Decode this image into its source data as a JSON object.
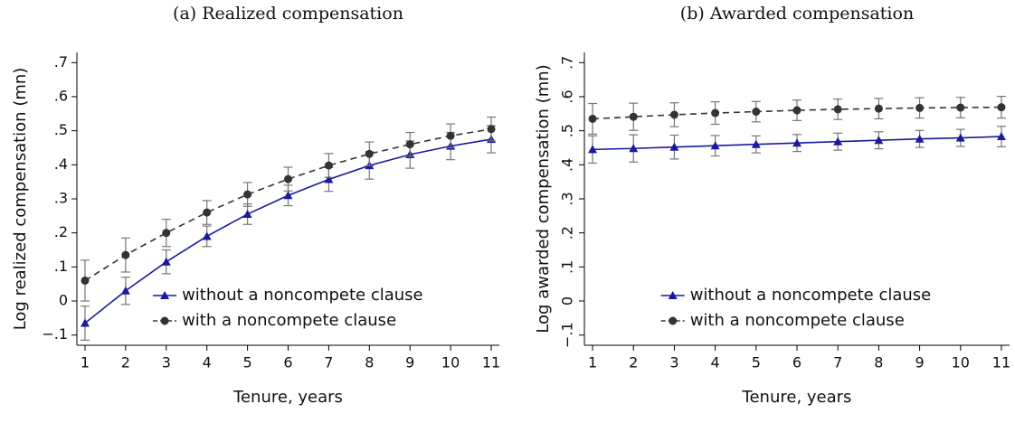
{
  "chart_data": [
    {
      "type": "line",
      "title": "(a) Realized compensation",
      "xlabel": "Tenure, years",
      "ylabel": "Log realized compensation (mn)",
      "x": [
        1,
        2,
        3,
        4,
        5,
        6,
        7,
        8,
        9,
        10,
        11
      ],
      "xlim": [
        0.8,
        11.2
      ],
      "xticks": [
        1,
        2,
        3,
        4,
        5,
        6,
        7,
        8,
        9,
        10,
        11
      ],
      "ylim": [
        -0.13,
        0.73
      ],
      "yticks": [
        {
          "value": -0.1,
          "label": "−.1"
        },
        0,
        {
          "value": 0.1,
          "label": ".1"
        },
        {
          "value": 0.2,
          "label": ".2"
        },
        {
          "value": 0.3,
          "label": ".3"
        },
        {
          "value": 0.4,
          "label": ".4"
        },
        {
          "value": 0.5,
          "label": ".5"
        },
        {
          "value": 0.6,
          "label": ".6"
        },
        {
          "value": 0.7,
          "label": ".7"
        }
      ],
      "legend": "lower right",
      "series": [
        {
          "name": "without a noncompete clause",
          "color": "#1a1a9c",
          "marker": "triangle",
          "linestyle": "solid",
          "values": [
            -0.065,
            0.03,
            0.115,
            0.19,
            0.255,
            0.31,
            0.357,
            0.398,
            0.43,
            0.455,
            0.475
          ],
          "errors": [
            0.05,
            0.04,
            0.035,
            0.03,
            0.03,
            0.03,
            0.035,
            0.04,
            0.04,
            0.04,
            0.04
          ]
        },
        {
          "name": "with a noncompete clause",
          "color": "#333333",
          "marker": "circle",
          "linestyle": "dashed",
          "values": [
            0.06,
            0.135,
            0.2,
            0.26,
            0.313,
            0.358,
            0.398,
            0.432,
            0.46,
            0.485,
            0.505
          ],
          "errors": [
            0.06,
            0.05,
            0.04,
            0.035,
            0.035,
            0.035,
            0.035,
            0.035,
            0.035,
            0.035,
            0.035
          ]
        }
      ]
    },
    {
      "type": "line",
      "title": "(b) Awarded compensation",
      "xlabel": "Tenure, years",
      "ylabel": "Log awarded compensation (mn)",
      "x": [
        1,
        2,
        3,
        4,
        5,
        6,
        7,
        8,
        9,
        10,
        11
      ],
      "xlim": [
        0.8,
        11.2
      ],
      "xticks": [
        1,
        2,
        3,
        4,
        5,
        6,
        7,
        8,
        9,
        10,
        11
      ],
      "ylim": [
        -0.13,
        0.73
      ],
      "yticks": [
        {
          "value": -0.1,
          "label": "−.1"
        },
        0,
        {
          "value": 0.1,
          "label": ".1"
        },
        {
          "value": 0.2,
          "label": ".2"
        },
        {
          "value": 0.3,
          "label": ".3"
        },
        {
          "value": 0.4,
          "label": ".4"
        },
        {
          "value": 0.5,
          "label": ".5"
        },
        {
          "value": 0.6,
          "label": ".6"
        },
        {
          "value": 0.7,
          "label": ".7"
        }
      ],
      "legend": "lower right",
      "series": [
        {
          "name": "without a noncompete clause",
          "color": "#1a1a9c",
          "marker": "triangle",
          "linestyle": "solid",
          "values": [
            0.445,
            0.448,
            0.452,
            0.456,
            0.46,
            0.464,
            0.468,
            0.472,
            0.476,
            0.479,
            0.483
          ],
          "errors": [
            0.04,
            0.04,
            0.035,
            0.03,
            0.025,
            0.025,
            0.025,
            0.025,
            0.025,
            0.025,
            0.03
          ]
        },
        {
          "name": "with a noncompete clause",
          "color": "#333333",
          "marker": "circle",
          "linestyle": "dashed",
          "values": [
            0.535,
            0.541,
            0.547,
            0.552,
            0.556,
            0.56,
            0.563,
            0.565,
            0.567,
            0.568,
            0.569
          ],
          "errors": [
            0.045,
            0.04,
            0.035,
            0.033,
            0.03,
            0.03,
            0.03,
            0.03,
            0.03,
            0.03,
            0.032
          ]
        }
      ]
    }
  ]
}
